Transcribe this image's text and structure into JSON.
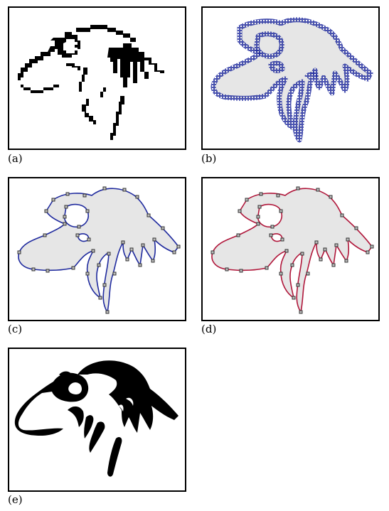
{
  "panels": [
    {
      "id": "a",
      "caption": "(a)",
      "style": "pixel"
    },
    {
      "id": "b",
      "caption": "(b)",
      "style": "boundary"
    },
    {
      "id": "c",
      "caption": "(c)",
      "style": "spline",
      "color": "#1f2a9e"
    },
    {
      "id": "d",
      "caption": "(d)",
      "style": "spline",
      "color": "#b0163a"
    },
    {
      "id": "e",
      "caption": "(e)",
      "style": "smooth"
    }
  ],
  "colors": {
    "pixel": "#000000",
    "boundary": "#1f2a9e",
    "fill": "#e6e6e6",
    "frame": "#000000"
  }
}
